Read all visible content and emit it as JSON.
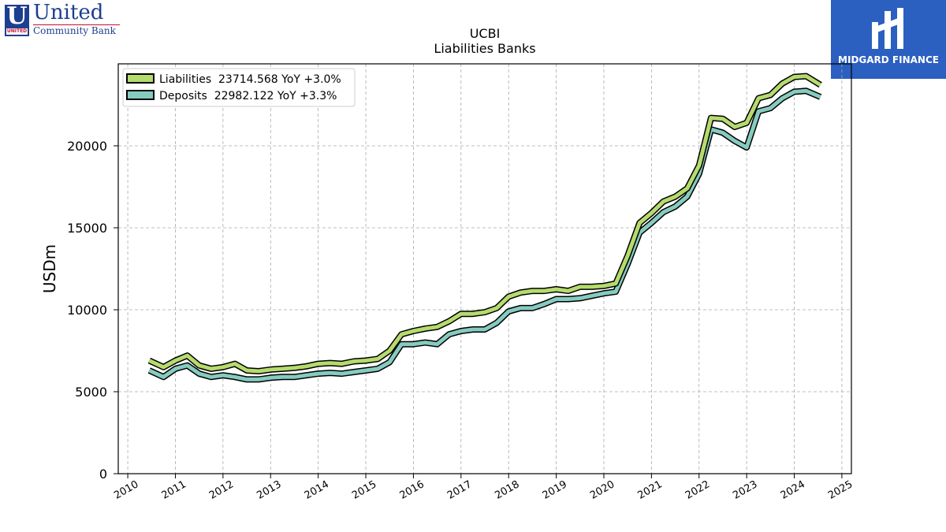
{
  "logos": {
    "left": {
      "letter": "U",
      "strip": "UNITED",
      "name": "United",
      "sub": "Community Bank"
    },
    "right": {
      "text": "MIDGARD FINANCE"
    }
  },
  "colors": {
    "liabilities": "#b5db6e",
    "deposits": "#86cbbf",
    "outline": "#000000",
    "grid": "#aaaaaa"
  },
  "chart_data": {
    "type": "line",
    "title": "UCBI",
    "subtitle": "Liabilities Banks",
    "ylabel": "USDm",
    "xlim": [
      2009.8,
      2025.2
    ],
    "ylim": [
      0,
      25000
    ],
    "yticks": [
      0,
      5000,
      10000,
      15000,
      20000
    ],
    "xticks": [
      2010,
      2011,
      2012,
      2013,
      2014,
      2015,
      2016,
      2017,
      2018,
      2019,
      2020,
      2021,
      2022,
      2023,
      2024,
      2025
    ],
    "grid": true,
    "legend_position": "top-left",
    "x": [
      2010.45,
      2010.75,
      2011.0,
      2011.25,
      2011.5,
      2011.75,
      2012.0,
      2012.25,
      2012.5,
      2012.75,
      2013.0,
      2013.25,
      2013.5,
      2013.75,
      2014.0,
      2014.25,
      2014.5,
      2014.75,
      2015.0,
      2015.25,
      2015.5,
      2015.75,
      2016.0,
      2016.25,
      2016.5,
      2016.75,
      2017.0,
      2017.25,
      2017.5,
      2017.75,
      2018.0,
      2018.25,
      2018.5,
      2018.75,
      2019.0,
      2019.25,
      2019.5,
      2019.75,
      2020.0,
      2020.25,
      2020.5,
      2020.75,
      2021.0,
      2021.25,
      2021.5,
      2021.75,
      2022.0,
      2022.25,
      2022.5,
      2022.75,
      2023.0,
      2023.25,
      2023.5,
      2023.75,
      2024.0,
      2024.25,
      2024.55
    ],
    "series": [
      {
        "name": "Liabilities",
        "legend": "Liabilities  23714.568 YoY +3.0%",
        "values": [
          6900,
          6500,
          6900,
          7200,
          6600,
          6400,
          6500,
          6700,
          6300,
          6250,
          6350,
          6400,
          6450,
          6550,
          6700,
          6750,
          6700,
          6850,
          6900,
          7000,
          7500,
          8500,
          8700,
          8850,
          8950,
          9300,
          9750,
          9750,
          9850,
          10100,
          10800,
          11050,
          11150,
          11150,
          11250,
          11150,
          11400,
          11400,
          11450,
          11600,
          13300,
          15300,
          15900,
          16600,
          16900,
          17400,
          18800,
          21700,
          21650,
          21150,
          21400,
          22900,
          23100,
          23800,
          24200,
          24250,
          23714.568
        ]
      },
      {
        "name": "Deposits",
        "legend": "Deposits  22982.122 YoY +3.3%",
        "values": [
          6300,
          5900,
          6400,
          6600,
          6100,
          5900,
          6000,
          5900,
          5750,
          5750,
          5850,
          5900,
          5900,
          6000,
          6100,
          6150,
          6100,
          6200,
          6300,
          6400,
          6800,
          7900,
          7900,
          8000,
          7900,
          8500,
          8700,
          8800,
          8800,
          9200,
          9900,
          10100,
          10100,
          10350,
          10650,
          10650,
          10700,
          10850,
          11000,
          11100,
          12800,
          14700,
          15300,
          15950,
          16300,
          16900,
          18300,
          21000,
          20800,
          20300,
          19900,
          22100,
          22300,
          22900,
          23300,
          23350,
          22982.122
        ]
      }
    ]
  }
}
